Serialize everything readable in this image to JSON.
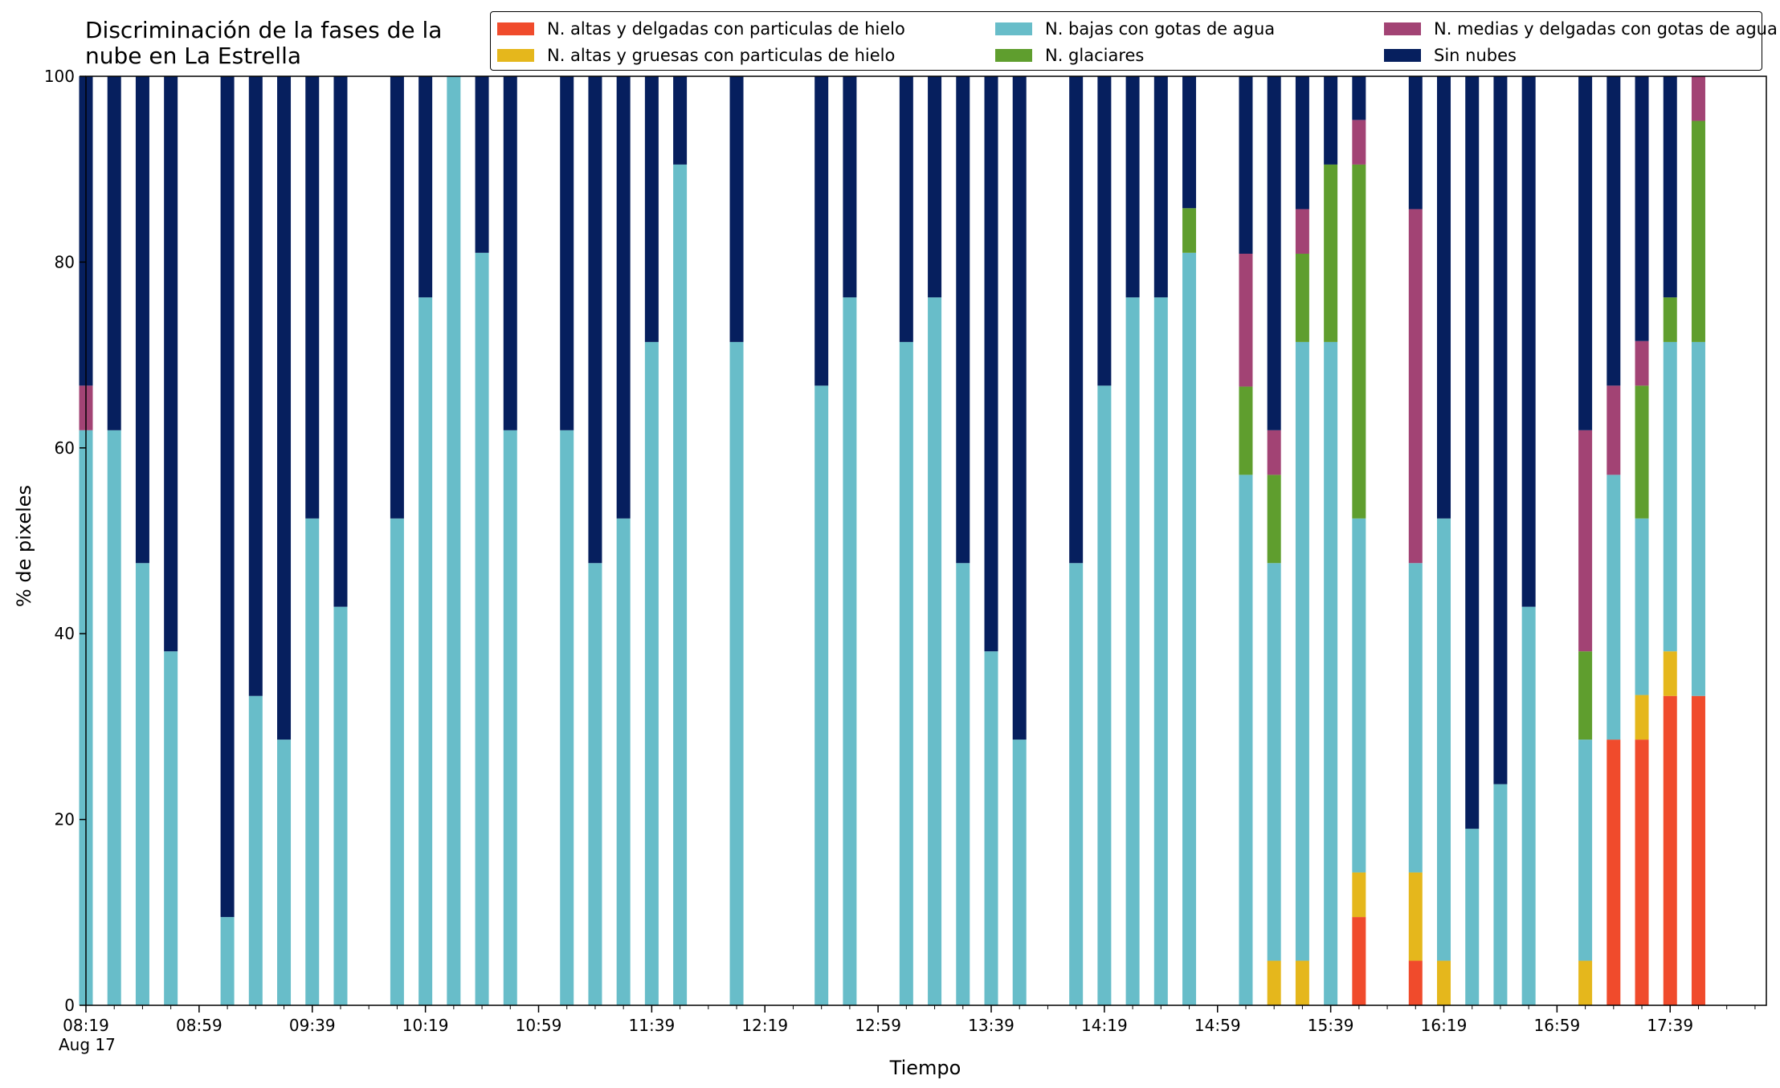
{
  "chart_data": {
    "type": "bar",
    "stacked": true,
    "title": "Discriminación de la fases de la\nnube en La Estrella",
    "xlabel": "Tiempo",
    "ylabel": "% de pixeles",
    "ylim": [
      0,
      100
    ],
    "yticks": [
      0,
      20,
      40,
      60,
      80,
      100
    ],
    "xrange": [
      "08:19",
      "18:13"
    ],
    "xticks": [
      {
        "time": "08:19",
        "label": "08:19",
        "sublabel": "Aug 17"
      },
      {
        "time": "08:59",
        "label": "08:59"
      },
      {
        "time": "09:39",
        "label": "09:39"
      },
      {
        "time": "10:19",
        "label": "10:19"
      },
      {
        "time": "10:59",
        "label": "10:59"
      },
      {
        "time": "11:39",
        "label": "11:39"
      },
      {
        "time": "12:19",
        "label": "12:19"
      },
      {
        "time": "12:59",
        "label": "12:59"
      },
      {
        "time": "13:39",
        "label": "13:39"
      },
      {
        "time": "14:19",
        "label": "14:19"
      },
      {
        "time": "14:59",
        "label": "14:59"
      },
      {
        "time": "15:39",
        "label": "15:39"
      },
      {
        "time": "16:19",
        "label": "16:19"
      },
      {
        "time": "16:59",
        "label": "16:59"
      },
      {
        "time": "17:39",
        "label": "17:39"
      }
    ],
    "legend_position": "top-right",
    "series": [
      {
        "name": "N. altas y delgadas con particulas de hielo",
        "color": "#f04b2c"
      },
      {
        "name": "N. altas y gruesas con particulas de hielo",
        "color": "#e5b71c"
      },
      {
        "name": "N. bajas con gotas de agua",
        "color": "#68bdc9"
      },
      {
        "name": "N. glaciares",
        "color": "#5f9e2e"
      },
      {
        "name": "N. medias y delgadas con gotas de agua",
        "color": "#a24374"
      },
      {
        "name": "Sin nubes",
        "color": "#061f5e"
      }
    ],
    "bars": [
      {
        "time": "08:19",
        "values": [
          0,
          0,
          61.9,
          0,
          4.8,
          33.3
        ]
      },
      {
        "time": "08:29",
        "values": [
          0,
          0,
          61.9,
          0,
          0,
          38.1
        ]
      },
      {
        "time": "08:39",
        "values": [
          0,
          0,
          47.6,
          0,
          0,
          52.4
        ]
      },
      {
        "time": "08:49",
        "values": [
          0,
          0,
          38.1,
          0,
          0,
          61.9
        ]
      },
      {
        "time": "09:09",
        "values": [
          0,
          0,
          9.5,
          0,
          0,
          90.5
        ]
      },
      {
        "time": "09:19",
        "values": [
          0,
          0,
          33.3,
          0,
          0,
          66.7
        ]
      },
      {
        "time": "09:29",
        "values": [
          0,
          0,
          28.6,
          0,
          0,
          71.4
        ]
      },
      {
        "time": "09:39",
        "values": [
          0,
          0,
          52.4,
          0,
          0,
          47.6
        ]
      },
      {
        "time": "09:49",
        "values": [
          0,
          0,
          42.9,
          0,
          0,
          57.1
        ]
      },
      {
        "time": "10:09",
        "values": [
          0,
          0,
          52.4,
          0,
          0,
          47.6
        ]
      },
      {
        "time": "10:19",
        "values": [
          0,
          0,
          76.2,
          0,
          0,
          23.8
        ]
      },
      {
        "time": "10:29",
        "values": [
          0,
          0,
          100,
          0,
          0,
          0
        ]
      },
      {
        "time": "10:39",
        "values": [
          0,
          0,
          81.0,
          0,
          0,
          19.0
        ]
      },
      {
        "time": "10:49",
        "values": [
          0,
          0,
          61.9,
          0,
          0,
          38.1
        ]
      },
      {
        "time": "11:09",
        "values": [
          0,
          0,
          61.9,
          0,
          0,
          38.1
        ]
      },
      {
        "time": "11:19",
        "values": [
          0,
          0,
          47.6,
          0,
          0,
          52.4
        ]
      },
      {
        "time": "11:29",
        "values": [
          0,
          0,
          52.4,
          0,
          0,
          47.6
        ]
      },
      {
        "time": "11:39",
        "values": [
          0,
          0,
          71.4,
          0,
          0,
          28.6
        ]
      },
      {
        "time": "11:49",
        "values": [
          0,
          0,
          90.5,
          0,
          0,
          9.5
        ]
      },
      {
        "time": "12:09",
        "values": [
          0,
          0,
          71.4,
          0,
          0,
          28.6
        ]
      },
      {
        "time": "12:39",
        "values": [
          0,
          0,
          66.7,
          0,
          0,
          33.3
        ]
      },
      {
        "time": "12:49",
        "values": [
          0,
          0,
          76.2,
          0,
          0,
          23.8
        ]
      },
      {
        "time": "13:09",
        "values": [
          0,
          0,
          71.4,
          0,
          0,
          28.6
        ]
      },
      {
        "time": "13:19",
        "values": [
          0,
          0,
          76.2,
          0,
          0,
          23.8
        ]
      },
      {
        "time": "13:29",
        "values": [
          0,
          0,
          47.6,
          0,
          0,
          52.4
        ]
      },
      {
        "time": "13:39",
        "values": [
          0,
          0,
          38.1,
          0,
          0,
          61.9
        ]
      },
      {
        "time": "13:49",
        "values": [
          0,
          0,
          28.6,
          0,
          0,
          71.4
        ]
      },
      {
        "time": "14:09",
        "values": [
          0,
          0,
          47.6,
          0,
          0,
          52.4
        ]
      },
      {
        "time": "14:19",
        "values": [
          0,
          0,
          66.7,
          0,
          0,
          33.3
        ]
      },
      {
        "time": "14:29",
        "values": [
          0,
          0,
          76.2,
          0,
          0,
          23.8
        ]
      },
      {
        "time": "14:39",
        "values": [
          0,
          0,
          76.2,
          0,
          0,
          23.8
        ]
      },
      {
        "time": "14:49",
        "values": [
          0,
          0,
          81.0,
          4.8,
          0,
          14.2
        ]
      },
      {
        "time": "15:09",
        "values": [
          0,
          0,
          57.1,
          9.5,
          14.3,
          19.1
        ]
      },
      {
        "time": "15:19",
        "values": [
          0,
          4.8,
          42.8,
          9.5,
          4.8,
          38.1
        ]
      },
      {
        "time": "15:29",
        "values": [
          0,
          4.8,
          66.6,
          9.5,
          4.8,
          14.3
        ]
      },
      {
        "time": "15:39",
        "values": [
          0,
          0,
          71.4,
          19.1,
          0,
          9.5
        ]
      },
      {
        "time": "15:49",
        "values": [
          9.5,
          4.8,
          38.1,
          38.1,
          4.8,
          4.7
        ]
      },
      {
        "time": "16:09",
        "values": [
          4.8,
          9.5,
          33.3,
          0,
          38.1,
          14.3
        ]
      },
      {
        "time": "16:19",
        "values": [
          0,
          4.8,
          47.6,
          0,
          0,
          47.6
        ]
      },
      {
        "time": "16:29",
        "values": [
          0,
          0,
          19.0,
          0,
          0,
          81.0
        ]
      },
      {
        "time": "16:39",
        "values": [
          0,
          0,
          23.8,
          0,
          0,
          76.2
        ]
      },
      {
        "time": "16:49",
        "values": [
          0,
          0,
          42.9,
          0,
          0,
          57.1
        ]
      },
      {
        "time": "17:09",
        "values": [
          0,
          4.8,
          23.8,
          9.5,
          23.8,
          38.1
        ]
      },
      {
        "time": "17:19",
        "values": [
          28.6,
          0,
          28.5,
          0,
          9.6,
          33.3
        ]
      },
      {
        "time": "17:29",
        "values": [
          28.6,
          4.8,
          19.0,
          14.3,
          4.8,
          28.5
        ]
      },
      {
        "time": "17:39",
        "values": [
          33.3,
          4.8,
          33.3,
          4.8,
          0,
          23.8
        ]
      },
      {
        "time": "17:49",
        "values": [
          33.3,
          0,
          38.1,
          23.8,
          4.8,
          0
        ]
      }
    ]
  }
}
